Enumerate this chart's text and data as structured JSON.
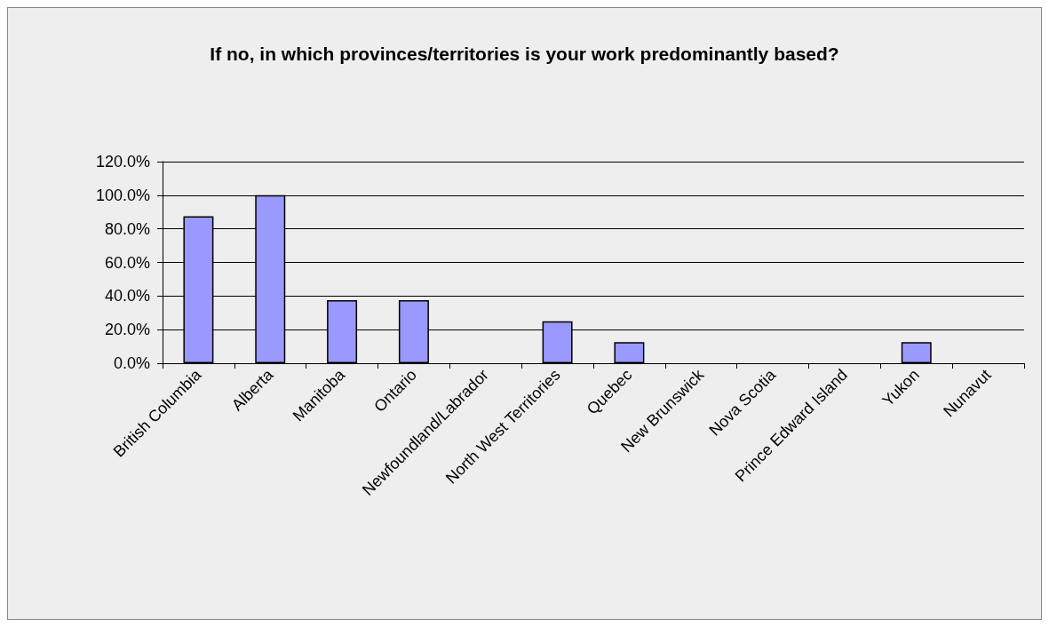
{
  "chart_data": {
    "type": "bar",
    "title": "If no, in which provinces/territories is your work predominantly based?",
    "categories": [
      "British Columbia",
      "Alberta",
      "Manitoba",
      "Ontario",
      "Newfoundland/Labrador",
      "North West Territories",
      "Quebec",
      "New Brunswick",
      "Nova Scotia",
      "Prince Edward Island",
      "Yukon",
      "Nunavut"
    ],
    "values": [
      87.5,
      100,
      37.5,
      37.5,
      0,
      25,
      12.5,
      0,
      0,
      0,
      12.5,
      0
    ],
    "color": "#9999ff",
    "ylim": [
      0,
      120
    ],
    "yticks": [
      {
        "value": 0,
        "label": "0.0%"
      },
      {
        "value": 20,
        "label": "20.0%"
      },
      {
        "value": 40,
        "label": "40.0%"
      },
      {
        "value": 60,
        "label": "60.0%"
      },
      {
        "value": 80,
        "label": "80.0%"
      },
      {
        "value": 100,
        "label": "100.0%"
      },
      {
        "value": 120,
        "label": "120.0%"
      }
    ],
    "grid": "y"
  }
}
